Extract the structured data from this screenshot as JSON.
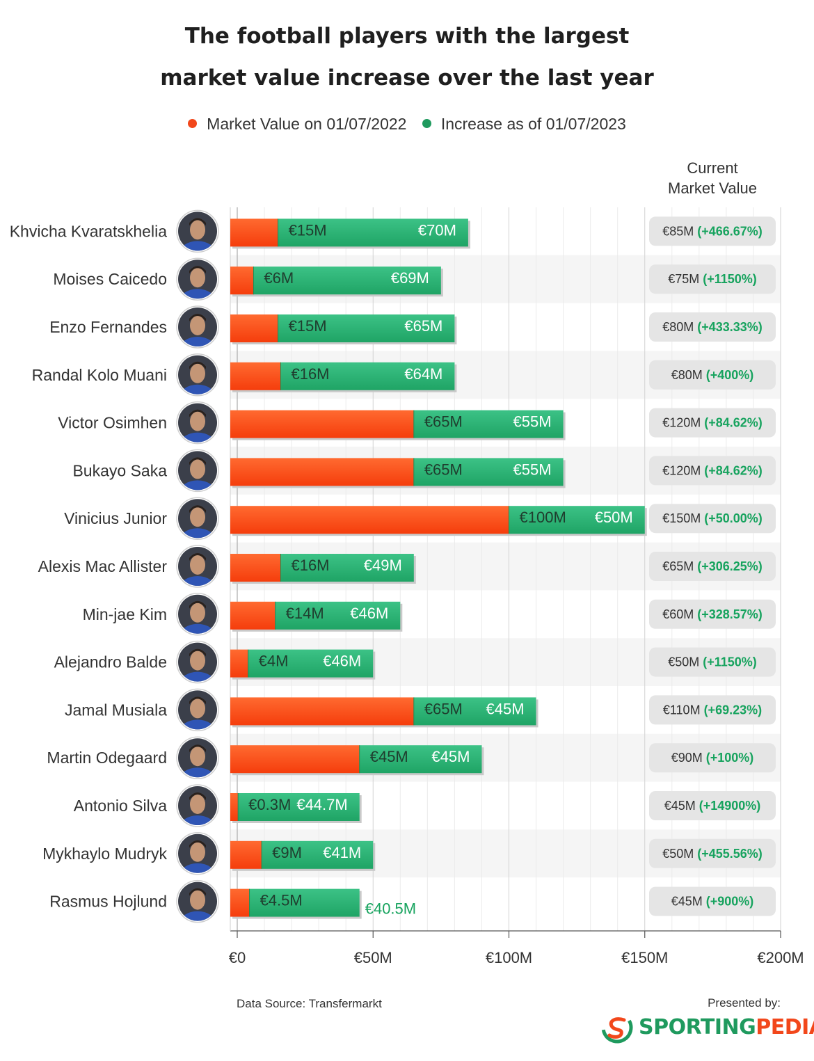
{
  "title_lines": [
    "The football players with the largest",
    "market value increase over the last year"
  ],
  "legend": {
    "base_label": "Market Value on 01/07/2022",
    "increase_label": "Increase as of 01/07/2023"
  },
  "current_value_header": [
    "Current",
    "Market Value"
  ],
  "colors": {
    "base": "#fb4a14",
    "increase": "#27b072",
    "pct": "#17a35e",
    "pill": "#e5e5e5"
  },
  "chart_data": {
    "type": "bar",
    "orientation": "horizontal",
    "stacked": true,
    "categories": [
      "Khvicha Kvaratskhelia",
      "Moises Caicedo",
      "Enzo Fernandes",
      "Randal Kolo Muani",
      "Victor Osimhen",
      "Bukayo Saka",
      "Vinicius Junior",
      "Alexis Mac Allister",
      "Min-jae Kim",
      "Alejandro Balde",
      "Jamal Musiala",
      "Martin Odegaard",
      "Antonio Silva",
      "Mykhaylo Mudryk",
      "Rasmus Hojlund"
    ],
    "series": [
      {
        "name": "Market Value on 01/07/2022",
        "values": [
          15,
          6,
          15,
          16,
          65,
          65,
          100,
          16,
          14,
          4,
          65,
          45,
          0.3,
          9,
          4.5
        ],
        "labels": [
          "€15M",
          "€6M",
          "€15M",
          "€16M",
          "€65M",
          "€65M",
          "€100M",
          "€16M",
          "€14M",
          "€4M",
          "€65M",
          "€45M",
          "€0.3M",
          "€9M",
          "€4.5M"
        ]
      },
      {
        "name": "Increase as of 01/07/2023",
        "values": [
          70,
          69,
          65,
          64,
          55,
          55,
          50,
          49,
          46,
          46,
          45,
          45,
          44.7,
          41,
          40.5
        ],
        "labels": [
          "€70M",
          "€69M",
          "€65M",
          "€64M",
          "€55M",
          "€55M",
          "€50M",
          "€49M",
          "€46M",
          "€46M",
          "€45M",
          "€45M",
          "€44.7M",
          "€41M",
          "€40.5M"
        ]
      }
    ],
    "current_value": [
      "€85M",
      "€75M",
      "€80M",
      "€80M",
      "€120M",
      "€120M",
      "€150M",
      "€65M",
      "€60M",
      "€50M",
      "€110M",
      "€90M",
      "€45M",
      "€50M",
      "€45M"
    ],
    "current_pct": [
      "(+466.67%)",
      "(+1150%)",
      "(+433.33%)",
      "(+400%)",
      "(+84.62%)",
      "(+84.62%)",
      "(+50.00%)",
      "(+306.25%)",
      "(+328.57%)",
      "(+1150%)",
      "(+69.23%)",
      "(+100%)",
      "(+14900%)",
      "(+455.56%)",
      "(+900%)"
    ],
    "xlim": [
      0,
      200
    ],
    "xticks": [
      0,
      50,
      100,
      150,
      200
    ],
    "xtick_labels": [
      "€0",
      "€50M",
      "€100M",
      "€150M",
      "€200M"
    ],
    "grid": true
  },
  "footer": {
    "source": "Data Source: Transfermarkt",
    "presented_by": "Presented by:",
    "logo_part1": "SPORTING",
    "logo_part2": "PEDIA"
  }
}
